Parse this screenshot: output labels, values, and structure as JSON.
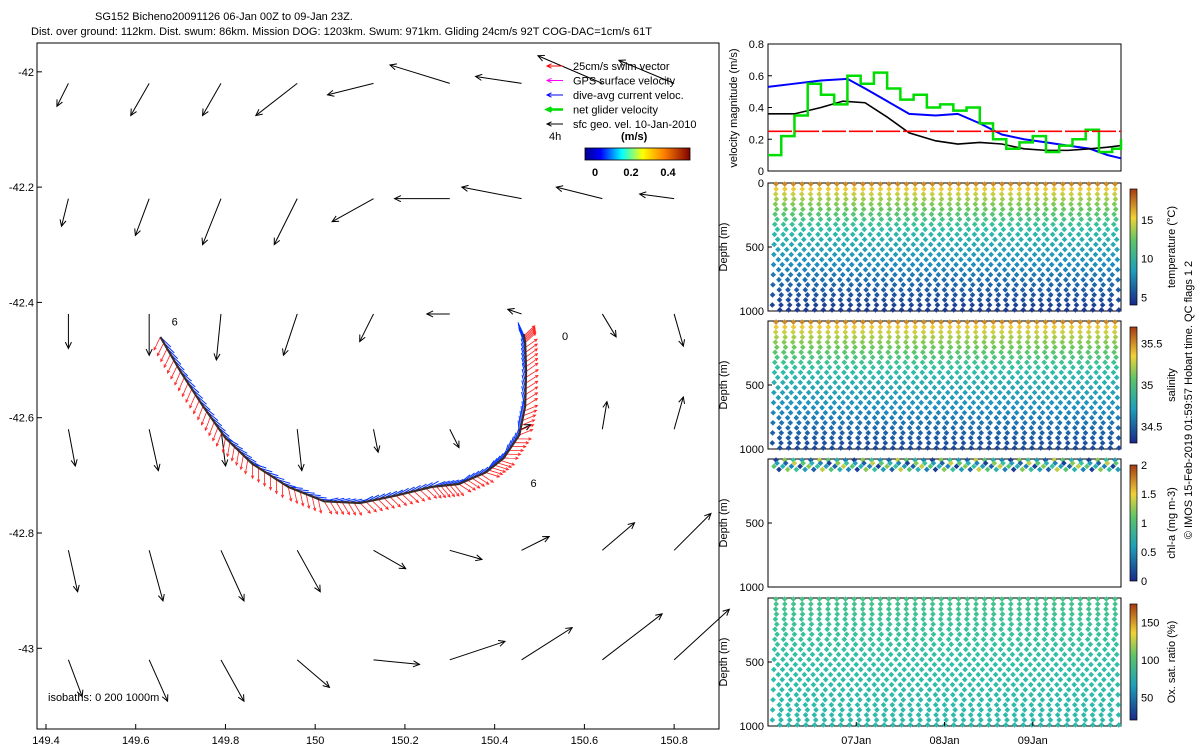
{
  "header": {
    "line1": "SG152 Bicheno20091126 06-Jan 00Z to 09-Jan 23Z.",
    "line2": "Dist. over ground: 112km. Dist. swum: 86km. Mission DOG: 1203km. Swum: 971km. Gliding 24cm/s 92T COG-DAC=1cm/s 61T"
  },
  "map": {
    "x_ticks": [
      "149.4",
      "149.6",
      "149.8",
      "150",
      "150.2",
      "150.4",
      "150.6",
      "150.8"
    ],
    "y_ticks": [
      "-42",
      "-42.2",
      "-42.4",
      "-42.6",
      "-42.8",
      "-43"
    ],
    "xlim": [
      149.38,
      150.9
    ],
    "ylim": [
      -43.14,
      -41.95
    ],
    "legend": [
      {
        "label": "25cm/s swim vector",
        "color": "#ff0000"
      },
      {
        "label": "GPS surface velocity",
        "color": "#ff00ff"
      },
      {
        "label": "dive-avg current veloc.",
        "color": "#0000ff"
      },
      {
        "label": "net glider velocity",
        "color": "#00dd00"
      },
      {
        "label": "sfc geo. vel. 10-Jan-2010",
        "color": "#000000"
      }
    ],
    "colorbar": {
      "label": "(m/s)",
      "note": "4h",
      "ticks": [
        "0",
        "0.2",
        "0.4"
      ]
    },
    "isobaths_label": "isobaths: 0   200  1000m",
    "point_labels": [
      {
        "text": "6",
        "lon": 149.68,
        "lat": -42.44
      },
      {
        "text": "0",
        "lon": 150.55,
        "lat": -42.465
      },
      {
        "text": "6",
        "lon": 150.48,
        "lat": -42.72
      }
    ],
    "track": [
      [
        149.655,
        -42.46
      ],
      [
        149.7,
        -42.52
      ],
      [
        149.75,
        -42.58
      ],
      [
        149.8,
        -42.635
      ],
      [
        149.86,
        -42.68
      ],
      [
        149.94,
        -42.72
      ],
      [
        150.02,
        -42.745
      ],
      [
        150.1,
        -42.748
      ],
      [
        150.18,
        -42.735
      ],
      [
        150.26,
        -42.72
      ],
      [
        150.32,
        -42.715
      ],
      [
        150.38,
        -42.695
      ],
      [
        150.42,
        -42.67
      ],
      [
        150.455,
        -42.63
      ],
      [
        150.468,
        -42.58
      ],
      [
        150.47,
        -42.52
      ],
      [
        150.468,
        -42.47
      ],
      [
        150.465,
        -42.455
      ]
    ]
  },
  "velocity_panel": {
    "ylabel": "velocity magnitude (m/s)",
    "yticks": [
      "0",
      "0.2",
      "0.4",
      "0.6",
      "0.8"
    ]
  },
  "profile_panels": [
    {
      "ylabel": "Depth (m)",
      "cbar_label": "temperature (°C)",
      "cbar_ticks": [
        "5",
        "10",
        "15"
      ],
      "yticks": [
        "0",
        "500",
        "1000"
      ]
    },
    {
      "ylabel": "Depth (m)",
      "cbar_label": "salinity",
      "cbar_ticks": [
        "34.5",
        "35",
        "35.5"
      ],
      "yticks": [
        "500",
        "1000"
      ]
    },
    {
      "ylabel": "Depth (m)",
      "cbar_label": "chl-a (mg m-3)",
      "cbar_ticks": [
        "0",
        "0.5",
        "1",
        "1.5",
        "2"
      ],
      "yticks": [
        "500",
        "1000"
      ]
    },
    {
      "ylabel": "Depth (m)",
      "cbar_label": "Ox. sat. ratio (%)",
      "cbar_ticks": [
        "50",
        "100",
        "150"
      ],
      "yticks": [
        "500",
        "1000"
      ]
    }
  ],
  "time_axis": {
    "ticks": [
      "07Jan",
      "08Jan",
      "09Jan"
    ]
  },
  "side_note": "© IMOS 15-Feb-2019 01:59:57 Hobart time. QC flags 1  2",
  "chart_data": [
    {
      "type": "scatter",
      "subtype": "quiver-map",
      "title": "SG152 Bicheno20091126 06-Jan 00Z to 09-Jan 23Z.",
      "xlim": [
        149.38,
        150.9
      ],
      "ylim": [
        -43.14,
        -41.95
      ],
      "surface_vectors": [
        {
          "lon": 149.45,
          "lat": -42.02,
          "u": -0.05,
          "v": -0.1
        },
        {
          "lon": 149.63,
          "lat": -42.02,
          "u": -0.08,
          "v": -0.14
        },
        {
          "lon": 149.79,
          "lat": -42.02,
          "u": -0.08,
          "v": -0.14
        },
        {
          "lon": 149.96,
          "lat": -42.02,
          "u": -0.18,
          "v": -0.14
        },
        {
          "lon": 150.13,
          "lat": -42.02,
          "u": -0.2,
          "v": -0.05
        },
        {
          "lon": 150.3,
          "lat": -42.02,
          "u": -0.26,
          "v": 0.08
        },
        {
          "lon": 150.46,
          "lat": -42.02,
          "u": -0.2,
          "v": 0.03
        },
        {
          "lon": 150.64,
          "lat": -42.02,
          "u": -0.28,
          "v": 0.12
        },
        {
          "lon": 150.8,
          "lat": -42.02,
          "u": -0.24,
          "v": 0.1
        },
        {
          "lon": 149.45,
          "lat": -42.22,
          "u": -0.03,
          "v": -0.12
        },
        {
          "lon": 149.63,
          "lat": -42.22,
          "u": -0.06,
          "v": -0.16
        },
        {
          "lon": 149.79,
          "lat": -42.22,
          "u": -0.08,
          "v": -0.2
        },
        {
          "lon": 149.96,
          "lat": -42.22,
          "u": -0.1,
          "v": -0.2
        },
        {
          "lon": 150.13,
          "lat": -42.22,
          "u": -0.18,
          "v": -0.1
        },
        {
          "lon": 150.3,
          "lat": -42.22,
          "u": -0.24,
          "v": 0.0
        },
        {
          "lon": 150.46,
          "lat": -42.22,
          "u": -0.26,
          "v": 0.05
        },
        {
          "lon": 150.64,
          "lat": -42.22,
          "u": -0.2,
          "v": 0.05
        },
        {
          "lon": 150.8,
          "lat": -42.22,
          "u": -0.15,
          "v": 0.02
        },
        {
          "lon": 149.45,
          "lat": -42.42,
          "u": 0.0,
          "v": -0.15
        },
        {
          "lon": 149.63,
          "lat": -42.42,
          "u": 0.0,
          "v": -0.18
        },
        {
          "lon": 149.79,
          "lat": -42.42,
          "u": -0.02,
          "v": -0.2
        },
        {
          "lon": 149.96,
          "lat": -42.42,
          "u": -0.06,
          "v": -0.18
        },
        {
          "lon": 150.13,
          "lat": -42.42,
          "u": -0.06,
          "v": -0.12
        },
        {
          "lon": 150.3,
          "lat": -42.42,
          "u": -0.1,
          "v": 0.0
        },
        {
          "lon": 150.46,
          "lat": -42.42,
          "u": -0.06,
          "v": 0.02
        },
        {
          "lon": 150.64,
          "lat": -42.42,
          "u": 0.06,
          "v": -0.1
        },
        {
          "lon": 150.8,
          "lat": -42.42,
          "u": 0.04,
          "v": -0.14
        },
        {
          "lon": 149.45,
          "lat": -42.62,
          "u": 0.03,
          "v": -0.16
        },
        {
          "lon": 149.63,
          "lat": -42.62,
          "u": 0.04,
          "v": -0.18
        },
        {
          "lon": 149.79,
          "lat": -42.62,
          "u": 0.02,
          "v": -0.16
        },
        {
          "lon": 149.96,
          "lat": -42.62,
          "u": 0.02,
          "v": -0.18
        },
        {
          "lon": 150.13,
          "lat": -42.62,
          "u": 0.02,
          "v": -0.1
        },
        {
          "lon": 150.3,
          "lat": -42.62,
          "u": 0.04,
          "v": -0.08
        },
        {
          "lon": 150.46,
          "lat": -42.62,
          "u": 0.04,
          "v": 0.02
        },
        {
          "lon": 150.64,
          "lat": -42.62,
          "u": 0.02,
          "v": 0.12
        },
        {
          "lon": 150.8,
          "lat": -42.62,
          "u": 0.04,
          "v": 0.14
        },
        {
          "lon": 149.45,
          "lat": -42.83,
          "u": 0.04,
          "v": -0.18
        },
        {
          "lon": 149.63,
          "lat": -42.83,
          "u": 0.06,
          "v": -0.22
        },
        {
          "lon": 149.79,
          "lat": -42.83,
          "u": 0.1,
          "v": -0.22
        },
        {
          "lon": 149.96,
          "lat": -42.83,
          "u": 0.1,
          "v": -0.18
        },
        {
          "lon": 150.13,
          "lat": -42.83,
          "u": 0.14,
          "v": -0.08
        },
        {
          "lon": 150.3,
          "lat": -42.83,
          "u": 0.14,
          "v": -0.04
        },
        {
          "lon": 150.46,
          "lat": -42.83,
          "u": 0.12,
          "v": 0.06
        },
        {
          "lon": 150.64,
          "lat": -42.83,
          "u": 0.14,
          "v": 0.12
        },
        {
          "lon": 150.8,
          "lat": -42.83,
          "u": 0.16,
          "v": 0.16
        },
        {
          "lon": 149.45,
          "lat": -43.02,
          "u": 0.06,
          "v": -0.16
        },
        {
          "lon": 149.63,
          "lat": -43.02,
          "u": 0.08,
          "v": -0.18
        },
        {
          "lon": 149.79,
          "lat": -43.02,
          "u": 0.1,
          "v": -0.18
        },
        {
          "lon": 149.96,
          "lat": -43.02,
          "u": 0.14,
          "v": -0.12
        },
        {
          "lon": 150.13,
          "lat": -43.02,
          "u": 0.2,
          "v": -0.02
        },
        {
          "lon": 150.3,
          "lat": -43.02,
          "u": 0.24,
          "v": 0.08
        },
        {
          "lon": 150.46,
          "lat": -43.02,
          "u": 0.22,
          "v": 0.14
        },
        {
          "lon": 150.64,
          "lat": -43.02,
          "u": 0.26,
          "v": 0.2
        },
        {
          "lon": 150.8,
          "lat": -43.02,
          "u": 0.24,
          "v": 0.22
        }
      ]
    },
    {
      "type": "line",
      "ylabel": "velocity magnitude (m/s)",
      "ylim": [
        0,
        0.8
      ],
      "xlim_days": [
        0,
        4
      ],
      "series": [
        {
          "color": "#0000ff",
          "x": [
            0,
            0.3,
            0.6,
            0.9,
            1.1,
            1.35,
            1.6,
            1.9,
            2.15,
            2.4,
            2.65,
            2.9,
            3.15,
            3.4,
            3.65,
            3.85,
            4.0
          ],
          "y": [
            0.53,
            0.55,
            0.57,
            0.58,
            0.52,
            0.44,
            0.36,
            0.35,
            0.36,
            0.3,
            0.23,
            0.2,
            0.18,
            0.16,
            0.14,
            0.1,
            0.08
          ]
        },
        {
          "color": "#000000",
          "x": [
            0,
            0.3,
            0.6,
            0.85,
            1.1,
            1.35,
            1.6,
            1.9,
            2.15,
            2.4,
            2.65,
            2.9,
            3.15,
            3.4,
            3.65,
            3.85,
            4.0
          ],
          "y": [
            0.36,
            0.36,
            0.4,
            0.44,
            0.43,
            0.34,
            0.24,
            0.19,
            0.17,
            0.18,
            0.17,
            0.14,
            0.13,
            0.13,
            0.14,
            0.15,
            0.16
          ]
        },
        {
          "color": "#00dd00",
          "x": [
            0,
            0.15,
            0.3,
            0.45,
            0.6,
            0.75,
            0.9,
            1.05,
            1.2,
            1.35,
            1.5,
            1.65,
            1.8,
            1.95,
            2.1,
            2.25,
            2.4,
            2.55,
            2.7,
            2.85,
            3.0,
            3.15,
            3.3,
            3.45,
            3.6,
            3.75,
            3.9,
            4.0
          ],
          "y": [
            0.1,
            0.22,
            0.35,
            0.55,
            0.48,
            0.42,
            0.6,
            0.55,
            0.62,
            0.52,
            0.45,
            0.48,
            0.4,
            0.42,
            0.38,
            0.4,
            0.3,
            0.2,
            0.14,
            0.18,
            0.22,
            0.12,
            0.16,
            0.2,
            0.26,
            0.12,
            0.14,
            0.2
          ]
        },
        {
          "color": "#ff0000",
          "x": [
            0,
            4
          ],
          "y": [
            0.25,
            0.25
          ]
        }
      ]
    },
    {
      "type": "heatmap",
      "variable": "temperature (°C)",
      "ylim": [
        1000,
        0
      ],
      "clim": [
        4,
        19
      ],
      "surface": 18,
      "bottom": 4.5,
      "max_depth": 1000
    },
    {
      "type": "heatmap",
      "variable": "salinity",
      "ylim": [
        1000,
        0
      ],
      "clim": [
        34.3,
        35.7
      ],
      "surface": 35.6,
      "bottom": 34.4,
      "max_depth": 1000
    },
    {
      "type": "heatmap",
      "variable": "chl-a (mg m-3)",
      "ylim": [
        1000,
        0
      ],
      "clim": [
        0,
        2
      ],
      "max_depth": 200
    },
    {
      "type": "heatmap",
      "variable": "Ox. sat. ratio (%)",
      "ylim": [
        1000,
        0
      ],
      "clim": [
        20,
        175
      ],
      "surface": 100,
      "bottom": 85,
      "max_depth": 1000
    }
  ]
}
